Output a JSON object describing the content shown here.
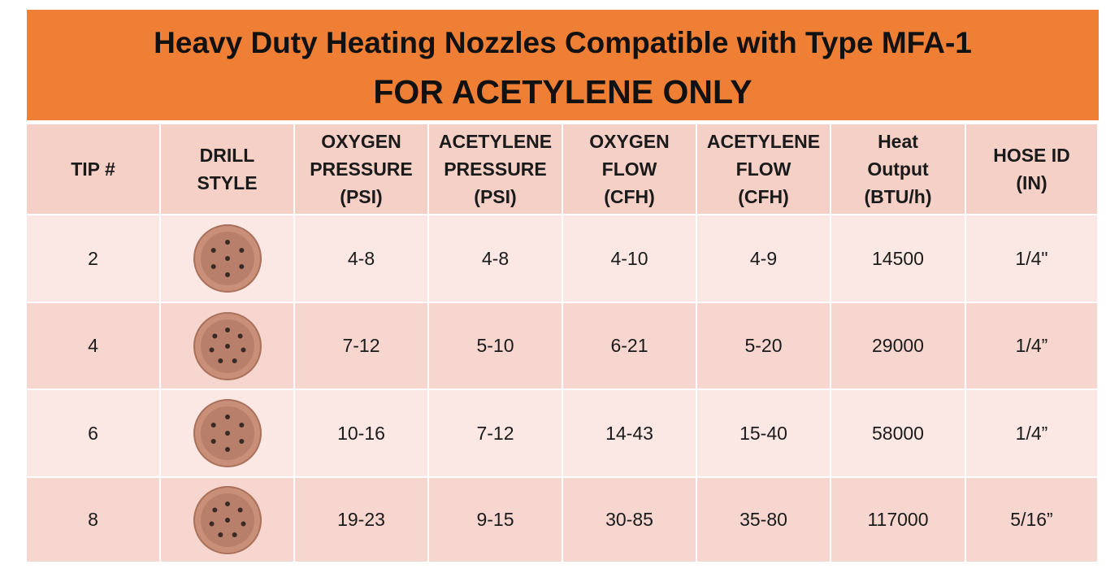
{
  "header": {
    "title": "Heavy Duty Heating Nozzles Compatible with Type MFA-1",
    "subtitle": "FOR ACETYLENE ONLY"
  },
  "table": {
    "columns": [
      [
        "TIP #"
      ],
      [
        "DRILL",
        "STYLE"
      ],
      [
        "OXYGEN",
        "PRESSURE",
        "(PSI)"
      ],
      [
        "ACETYLENE",
        "PRESSURE",
        "(PSI)"
      ],
      [
        "OXYGEN",
        "FLOW",
        "(CFH)"
      ],
      [
        "ACETYLENE",
        "FLOW",
        "(CFH)"
      ],
      [
        "Heat",
        "Output",
        "(BTU/h)"
      ],
      [
        "HOSE ID",
        "(IN)"
      ]
    ],
    "rows": [
      {
        "tip": "2",
        "oxygen_pressure": "4-8",
        "acetylene_pressure": "4-8",
        "oxygen_flow": "4-10",
        "acetylene_flow": "4-9",
        "heat_output": "14500",
        "hose_id": "1/4\""
      },
      {
        "tip": "4",
        "oxygen_pressure": "7-12",
        "acetylene_pressure": "5-10",
        "oxygen_flow": "6-21",
        "acetylene_flow": "5-20",
        "heat_output": "29000",
        "hose_id": "1/4”"
      },
      {
        "tip": "6",
        "oxygen_pressure": "10-16",
        "acetylene_pressure": "7-12",
        "oxygen_flow": "14-43",
        "acetylene_flow": "15-40",
        "heat_output": "58000",
        "hose_id": "1/4”"
      },
      {
        "tip": "8",
        "oxygen_pressure": "19-23",
        "acetylene_pressure": "9-15",
        "oxygen_flow": "30-85",
        "acetylene_flow": "35-80",
        "heat_output": "117000",
        "hose_id": "5/16”"
      }
    ]
  }
}
